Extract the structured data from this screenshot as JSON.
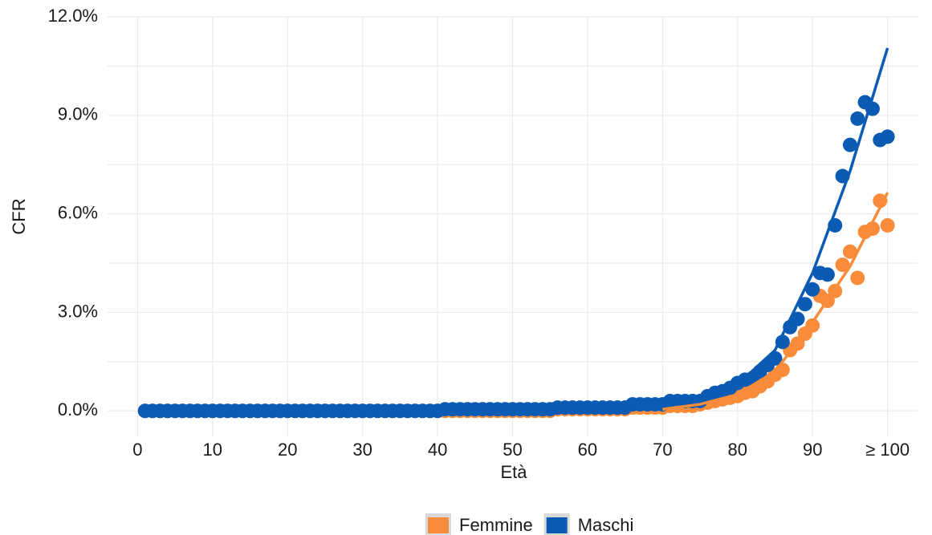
{
  "chart_data": {
    "type": "scatter",
    "xlabel": "Età",
    "ylabel": "CFR",
    "xlim": [
      -4,
      104
    ],
    "ylim": [
      -0.8,
      12.0
    ],
    "xticks": [
      0,
      10,
      20,
      30,
      40,
      50,
      60,
      70,
      80,
      90,
      {
        "value": 100,
        "label": "≥ 100"
      }
    ],
    "yticks": [
      {
        "value": 0,
        "label": "0.0%"
      },
      {
        "value": 3,
        "label": "3.0%"
      },
      {
        "value": 6,
        "label": "6.0%"
      },
      {
        "value": 9,
        "label": "9.0%"
      },
      {
        "value": 12,
        "label": "12.0%"
      }
    ],
    "grid": true,
    "legend": "bottom",
    "x": [
      1,
      2,
      3,
      4,
      5,
      6,
      7,
      8,
      9,
      10,
      11,
      12,
      13,
      14,
      15,
      16,
      17,
      18,
      19,
      20,
      21,
      22,
      23,
      24,
      25,
      26,
      27,
      28,
      29,
      30,
      31,
      32,
      33,
      34,
      35,
      36,
      37,
      38,
      39,
      40,
      41,
      42,
      43,
      44,
      45,
      46,
      47,
      48,
      49,
      50,
      51,
      52,
      53,
      54,
      55,
      56,
      57,
      58,
      59,
      60,
      61,
      62,
      63,
      64,
      65,
      66,
      67,
      68,
      69,
      70,
      71,
      72,
      73,
      74,
      75,
      76,
      77,
      78,
      79,
      80,
      81,
      82,
      83,
      84,
      85,
      86,
      87,
      88,
      89,
      90,
      91,
      92,
      93,
      94,
      95,
      96,
      97,
      98,
      99,
      100
    ],
    "trend_x": [
      70,
      75,
      80,
      85,
      90,
      95,
      100
    ],
    "series": [
      {
        "name": "Femmine",
        "color": "#f98c3a",
        "values": [
          0,
          0,
          0,
          0,
          0,
          0,
          0,
          0,
          0,
          0,
          0,
          0,
          0,
          0,
          0,
          0,
          0,
          0,
          0,
          0,
          0,
          0,
          0,
          0,
          0,
          0,
          0,
          0,
          0,
          0,
          0,
          0,
          0,
          0,
          0,
          0,
          0,
          0,
          0,
          0,
          0,
          0,
          0,
          0,
          0,
          0,
          0,
          0,
          0,
          0,
          0,
          0,
          0,
          0,
          0,
          0.05,
          0.05,
          0.05,
          0.05,
          0.05,
          0.05,
          0.05,
          0.05,
          0.05,
          0.05,
          0.1,
          0.1,
          0.1,
          0.1,
          0.1,
          0.15,
          0.15,
          0.15,
          0.15,
          0.2,
          0.25,
          0.3,
          0.35,
          0.4,
          0.45,
          0.55,
          0.6,
          0.75,
          0.9,
          1.1,
          1.25,
          1.85,
          2.05,
          2.35,
          2.6,
          3.5,
          3.35,
          3.65,
          4.45,
          4.85,
          4.05,
          5.45,
          5.55,
          6.4,
          5.65
        ],
        "trend": [
          0.05,
          0.2,
          0.5,
          1.2,
          2.7,
          4.4,
          6.65
        ]
      },
      {
        "name": "Maschi",
        "color": "#0b5bb5",
        "values": [
          0,
          0,
          0,
          0,
          0,
          0,
          0,
          0,
          0,
          0,
          0,
          0,
          0,
          0,
          0,
          0,
          0,
          0,
          0,
          0,
          0,
          0,
          0,
          0,
          0,
          0,
          0,
          0,
          0,
          0,
          0,
          0,
          0,
          0,
          0,
          0,
          0,
          0,
          0,
          0,
          0.05,
          0.05,
          0.05,
          0.05,
          0.05,
          0.05,
          0.05,
          0.05,
          0.05,
          0.05,
          0.05,
          0.05,
          0.05,
          0.05,
          0.05,
          0.1,
          0.1,
          0.1,
          0.1,
          0.1,
          0.1,
          0.1,
          0.1,
          0.1,
          0.1,
          0.2,
          0.2,
          0.2,
          0.2,
          0.2,
          0.3,
          0.3,
          0.3,
          0.3,
          0.3,
          0.45,
          0.55,
          0.6,
          0.7,
          0.85,
          0.95,
          1.0,
          1.2,
          1.4,
          1.6,
          2.1,
          2.55,
          2.8,
          3.25,
          3.7,
          4.2,
          4.15,
          5.65,
          7.15,
          8.1,
          8.9,
          9.4,
          9.2,
          8.25,
          8.35
        ],
        "trend": [
          0.15,
          0.35,
          0.8,
          1.85,
          4.2,
          7.3,
          11.05
        ]
      }
    ]
  }
}
